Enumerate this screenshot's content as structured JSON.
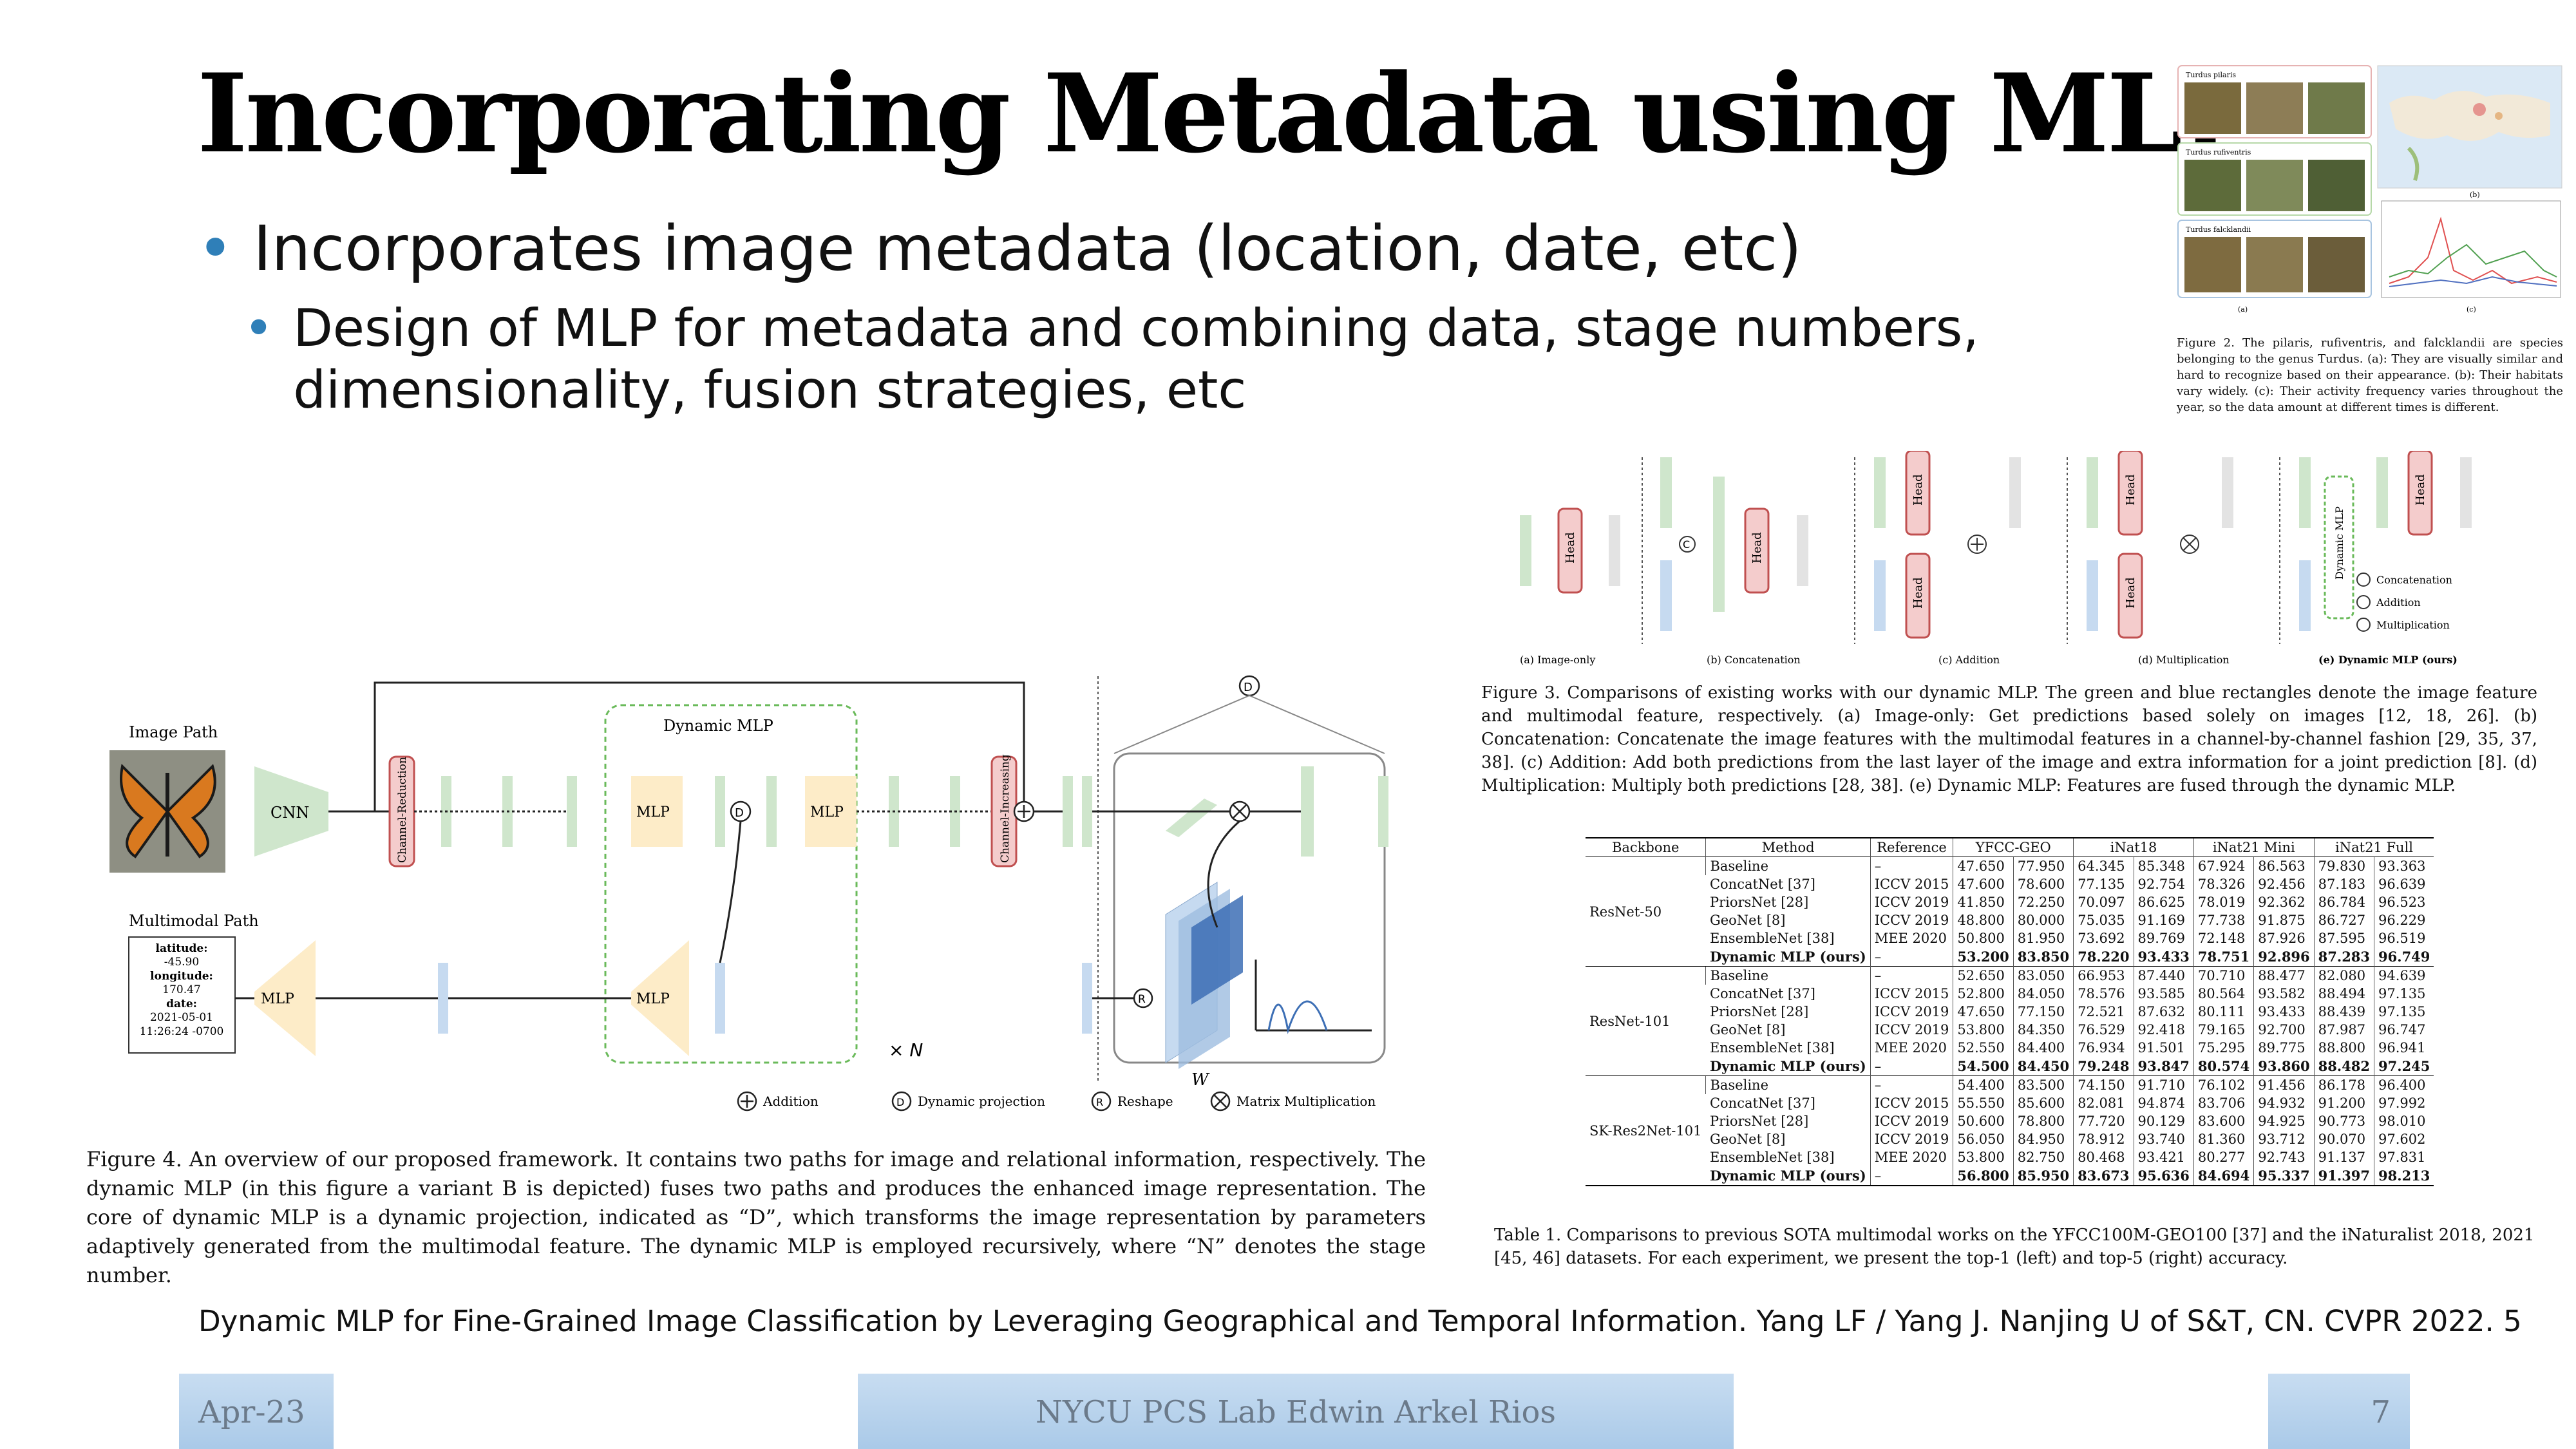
{
  "slide": {
    "title": "Incorporating Metadata using MLP",
    "bullet1": "Incorporates image metadata (location, date, etc)",
    "bullet2": "Design of MLP for metadata and combining data, stage numbers, dimensionality, fusion strategies, etc",
    "source": "Dynamic MLP for Fine-Grained Image Classification by Leveraging Geographical and Temporal Information. Yang LF / Yang J. Nanjing U of S&T, CN. CVPR 2022. 5"
  },
  "footer": {
    "date": "Apr-23",
    "center": "NYCU PCS Lab Edwin Arkel Rios",
    "page": "7"
  },
  "fig2": {
    "panel_labels": [
      "Turdus pilaris",
      "Turdus rufiventris",
      "Turdus falcklandii"
    ],
    "sub_a": "(a)",
    "sub_b": "(b)",
    "sub_c": "(c)",
    "caption": "Figure 2. The pilaris, rufiventris, and falcklandii are species belonging to the genus Turdus. (a): They are visually similar and hard to recognize based on their appearance. (b): Their habitats vary widely. (c): Their activity frequency varies throughout the year, so the data amount at different times is different."
  },
  "fig3": {
    "panel_titles": [
      "(a) Image-only",
      "(b) Concatenation",
      "(c) Addition",
      "(d) Multiplication",
      "(e) Dynamic MLP (ours)"
    ],
    "head_label": "Head",
    "dynamic_label": "Dynamic MLP",
    "legend": [
      "Concatenation",
      "Addition",
      "Multiplication"
    ],
    "caption": "Figure 3. Comparisons of existing works with our dynamic MLP. The green and blue rectangles denote the image feature and multimodal feature, respectively. (a) Image-only: Get predictions based solely on images [12, 18, 26]. (b) Concatenation: Concatenate the image features with the multimodal features in a channel-by-channel fashion [29, 35, 37, 38]. (c) Addition: Add both predictions from the last layer of the image and extra information for a joint prediction [8]. (d) Multiplication: Multiply both predictions [28, 38]. (e) Dynamic MLP: Features are fused through the dynamic MLP."
  },
  "fig4": {
    "image_path": "Image Path",
    "multimodal_path": "Multimodal Path",
    "dynamic_mlp": "Dynamic MLP",
    "cnn": "CNN",
    "mlp": "MLP",
    "channel_reduction": "Channel-Reduction",
    "channel_increasing": "Channel-Increasing",
    "times_n": "× N",
    "w_label": "W",
    "metadata_lines": [
      "latitude:",
      "-45.90",
      "longitude:",
      "170.47",
      "date:",
      "2021-05-01",
      "11:26:24 -0700"
    ],
    "legend": [
      "Addition",
      "Dynamic projection",
      "Reshape",
      "Matrix Multiplication"
    ],
    "caption": "Figure 4. An overview of our proposed framework. It contains two paths for image and relational information, respectively. The dynamic MLP (in this figure a variant B is depicted) fuses two paths and produces the enhanced image representation. The core of dynamic MLP is a dynamic projection, indicated as “D”, which transforms the image representation by parameters adaptively generated from the multimodal feature. The dynamic MLP is employed recursively, where “N” denotes the stage number."
  },
  "table": {
    "headers": [
      "Backbone",
      "Method",
      "Reference",
      "YFCC-GEO",
      "iNat18",
      "iNat21 Mini",
      "iNat21 Full"
    ],
    "groups": [
      {
        "backbone": "ResNet-50",
        "rows": [
          [
            "Baseline",
            "–",
            "47.650",
            "77.950",
            "64.345",
            "85.348",
            "67.924",
            "86.563",
            "79.830",
            "93.363"
          ],
          [
            "ConcatNet [37]",
            "ICCV 2015",
            "47.600",
            "78.600",
            "77.135",
            "92.754",
            "78.326",
            "92.456",
            "87.183",
            "96.639"
          ],
          [
            "PriorsNet [28]",
            "ICCV 2019",
            "41.850",
            "72.250",
            "70.097",
            "86.625",
            "78.019",
            "92.362",
            "86.784",
            "96.523"
          ],
          [
            "GeoNet [8]",
            "ICCV 2019",
            "48.800",
            "80.000",
            "75.035",
            "91.169",
            "77.738",
            "91.875",
            "86.727",
            "96.229"
          ],
          [
            "EnsembleNet [38]",
            "MEE 2020",
            "50.800",
            "81.950",
            "73.692",
            "89.769",
            "72.148",
            "87.926",
            "87.595",
            "96.519"
          ],
          [
            "Dynamic MLP (ours)",
            "–",
            "53.200",
            "83.850",
            "78.220",
            "93.433",
            "78.751",
            "92.896",
            "87.283",
            "96.749"
          ]
        ]
      },
      {
        "backbone": "ResNet-101",
        "rows": [
          [
            "Baseline",
            "–",
            "52.650",
            "83.050",
            "66.953",
            "87.440",
            "70.710",
            "88.477",
            "82.080",
            "94.639"
          ],
          [
            "ConcatNet [37]",
            "ICCV 2015",
            "52.800",
            "84.050",
            "78.576",
            "93.585",
            "80.564",
            "93.582",
            "88.494",
            "97.135"
          ],
          [
            "PriorsNet [28]",
            "ICCV 2019",
            "47.650",
            "77.150",
            "72.521",
            "87.632",
            "80.111",
            "93.433",
            "88.439",
            "97.135"
          ],
          [
            "GeoNet [8]",
            "ICCV 2019",
            "53.800",
            "84.350",
            "76.529",
            "92.418",
            "79.165",
            "92.700",
            "87.987",
            "96.747"
          ],
          [
            "EnsembleNet [38]",
            "MEE 2020",
            "52.550",
            "84.400",
            "76.934",
            "91.501",
            "75.295",
            "89.775",
            "88.800",
            "96.941"
          ],
          [
            "Dynamic MLP (ours)",
            "–",
            "54.500",
            "84.450",
            "79.248",
            "93.847",
            "80.574",
            "93.860",
            "88.482",
            "97.245"
          ]
        ]
      },
      {
        "backbone": "SK-Res2Net-101",
        "rows": [
          [
            "Baseline",
            "–",
            "54.400",
            "83.500",
            "74.150",
            "91.710",
            "76.102",
            "91.456",
            "86.178",
            "96.400"
          ],
          [
            "ConcatNet [37]",
            "ICCV 2015",
            "55.550",
            "85.600",
            "82.081",
            "94.874",
            "83.706",
            "94.932",
            "91.200",
            "97.992"
          ],
          [
            "PriorsNet [28]",
            "ICCV 2019",
            "50.600",
            "78.800",
            "77.720",
            "90.129",
            "83.600",
            "94.925",
            "90.773",
            "98.010"
          ],
          [
            "GeoNet [8]",
            "ICCV 2019",
            "56.050",
            "84.950",
            "78.912",
            "93.740",
            "81.360",
            "93.712",
            "90.070",
            "97.602"
          ],
          [
            "EnsembleNet [38]",
            "MEE 2020",
            "53.800",
            "82.750",
            "80.468",
            "93.421",
            "80.277",
            "92.743",
            "91.137",
            "97.831"
          ],
          [
            "Dynamic MLP (ours)",
            "–",
            "56.800",
            "85.950",
            "83.673",
            "95.636",
            "84.694",
            "95.337",
            "91.397",
            "98.213"
          ]
        ]
      }
    ],
    "caption": "Table 1. Comparisons to previous SOTA multimodal works on the YFCC100M-GEO100 [37] and the iNaturalist 2018, 2021 [45, 46] datasets. For each experiment, we present the top-1 (left) and top-5 (right) accuracy."
  },
  "colors": {
    "bullet": "#2f7fb8",
    "image_feature": "#cfe6cc",
    "multimodal_feature": "#c6daf0",
    "head": "#f4cccc",
    "mlp_block": "#fdecc8",
    "footer": "#b9d3ec"
  }
}
